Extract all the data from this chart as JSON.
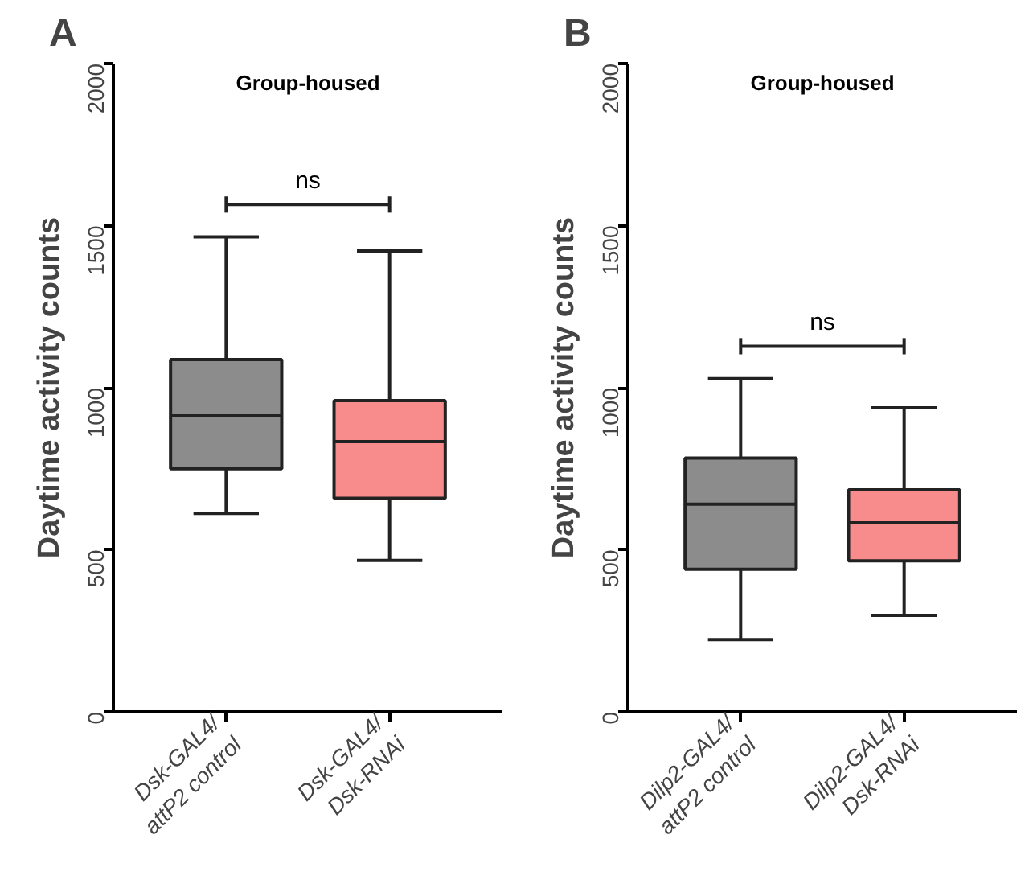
{
  "chart_data": [
    {
      "type": "box",
      "title": "A",
      "subtitle": "Group-housed",
      "ylabel": "Daytime activity counts",
      "categories": [
        "Dsk-GAL4/\nattP2 control",
        "Dsk-GAL4/\nDsk-RNAi"
      ],
      "colors": [
        "#8c8c8c",
        "#f88c8c"
      ],
      "boxes": [
        {
          "low": 612,
          "q1": 750,
          "median": 913,
          "q3": 1087,
          "high": 1465
        },
        {
          "low": 467,
          "q1": 659,
          "median": 834,
          "q3": 960,
          "high": 1422
        }
      ],
      "ylim": [
        0,
        2000
      ],
      "yticks": [
        0,
        500,
        1000,
        1500,
        2000
      ],
      "grid": false,
      "annotations": [
        "ns"
      ]
    },
    {
      "type": "box",
      "title": "B",
      "subtitle": "Group-housed",
      "ylabel": "Daytime activity counts",
      "categories": [
        "Dilp2-GAL4/\nattP2 control",
        "Dilp2-GAL4/\nDsk-RNAi"
      ],
      "colors": [
        "#8c8c8c",
        "#f88c8c"
      ],
      "boxes": [
        {
          "low": 223,
          "q1": 440,
          "median": 641,
          "q3": 783,
          "high": 1028
        },
        {
          "low": 298,
          "q1": 466,
          "median": 583,
          "q3": 685,
          "high": 938
        }
      ],
      "ylim": [
        0,
        2000
      ],
      "yticks": [
        0,
        500,
        1000,
        1500,
        2000
      ],
      "grid": false,
      "annotations": [
        "ns"
      ]
    }
  ]
}
